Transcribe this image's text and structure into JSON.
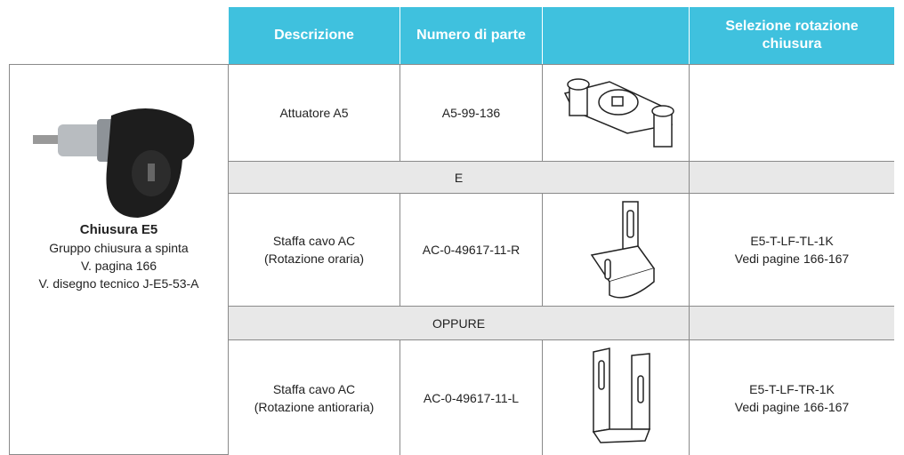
{
  "table": {
    "header": [
      "Descrizione",
      "Numero di parte",
      "Selezione rotazione chiusura"
    ],
    "product": {
      "title": "Chiusura E5",
      "lines": [
        "Gruppo chiusura a spinta",
        "V. pagina 166",
        "V. disegno tecnico J-E5-53-A"
      ]
    },
    "rows": [
      {
        "description": [
          "Attuatore A5"
        ],
        "part": "A5-99-136"
      },
      {
        "separator": "E"
      },
      {
        "description": [
          "Staffa cavo AC",
          "(Rotazione oraria)"
        ],
        "part": "AC-0-49617-11-R",
        "selection": [
          "E5-T-LF-TL-1K",
          "Vedi pagine 166-167"
        ]
      },
      {
        "separator": "OPPURE"
      },
      {
        "description": [
          "Staffa cavo AC",
          "(Rotazione antioraria)"
        ],
        "part": "AC-0-49617-11-L",
        "selection": [
          "E5-T-LF-TR-1K",
          "Vedi pagine 166-167"
        ]
      }
    ]
  }
}
